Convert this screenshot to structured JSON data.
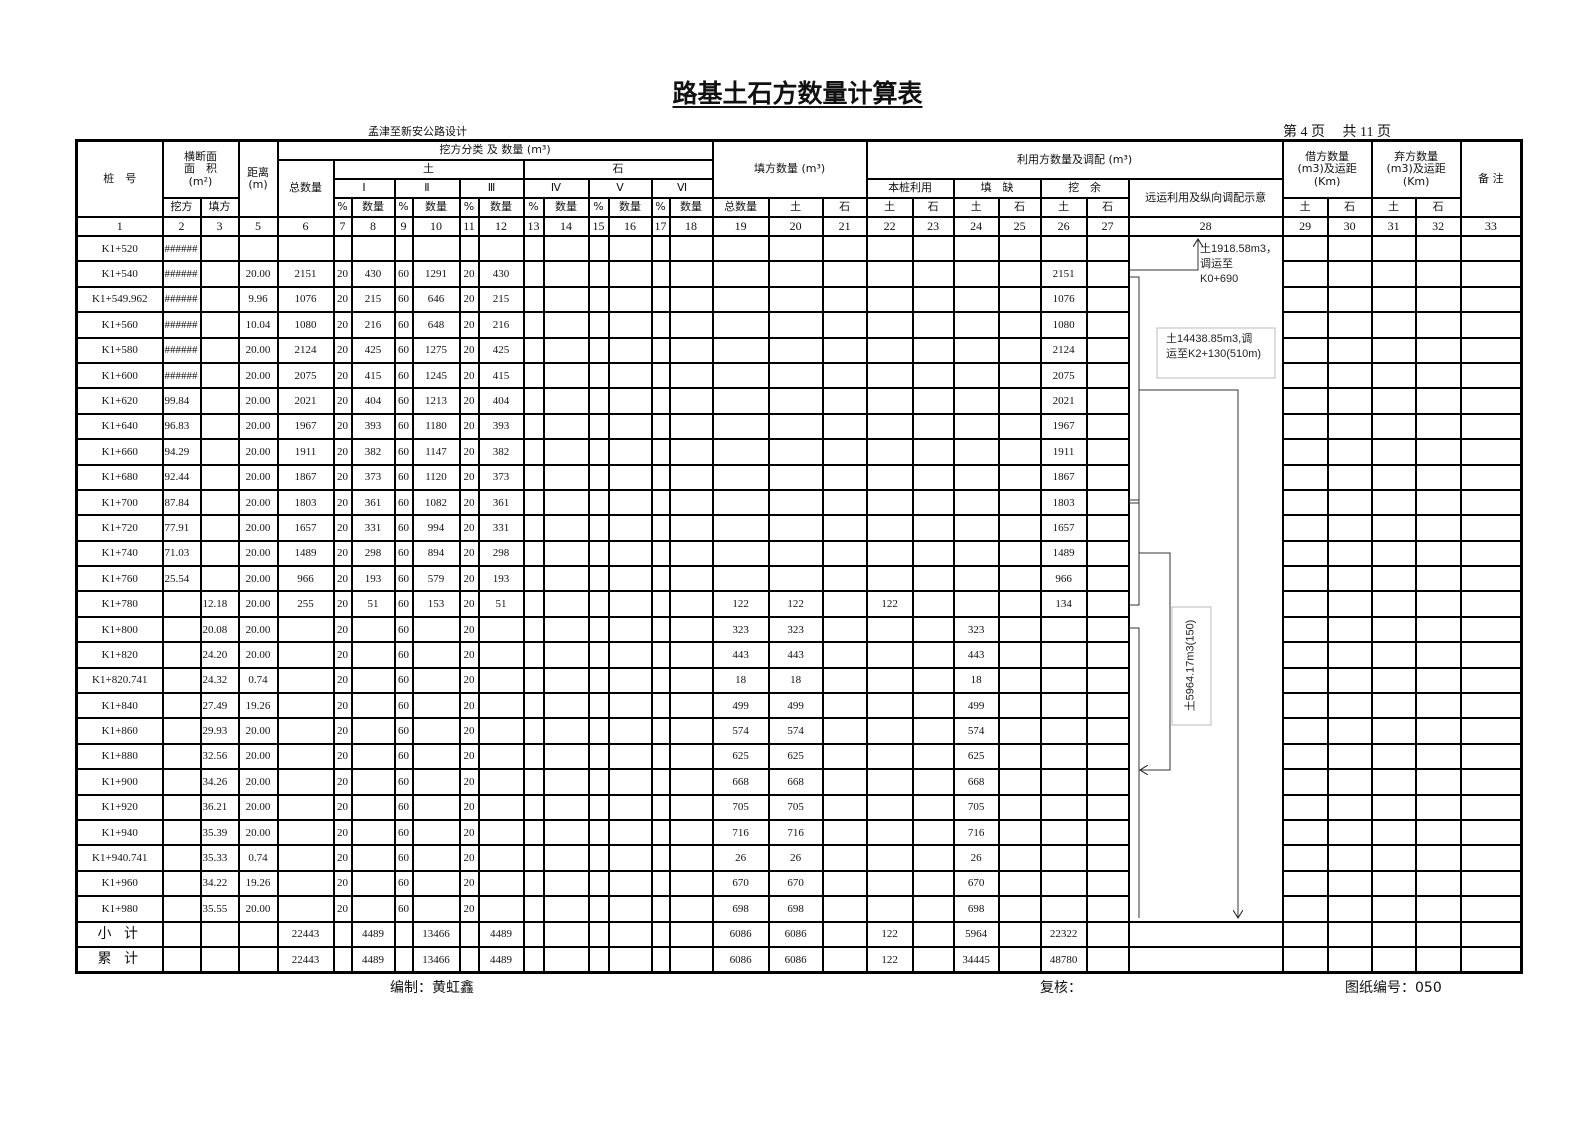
{
  "title": "路基土石方数量计算表",
  "project": "孟津至新安公路设计",
  "page_info": "第 4 页　 共 11 页",
  "header": {
    "station": "桩　号",
    "section_area_l1": "横断面",
    "section_area_l2": "面　积",
    "section_area_l3": "(m²)",
    "cut_area": "挖方",
    "fill_area": "填方",
    "distance_l1": "距离",
    "distance_l2": "(m)",
    "cut_group": "挖方分类 及 数量 (m³)",
    "cut_total": "总数量",
    "soil": "土",
    "rock": "石",
    "classes": [
      "Ⅰ",
      "Ⅱ",
      "Ⅲ",
      "Ⅳ",
      "Ⅴ",
      "Ⅵ"
    ],
    "pct": "%",
    "qty": "数量",
    "fill_group": "填方数量 (m³)",
    "fill_total": "总数量",
    "use_group": "利用方数量及调配 (m³)",
    "self_use": "本桩利用",
    "shortage": "填　缺",
    "surplus": "挖　余",
    "haul_diagram": "远运利用及纵向调配示意",
    "borrow_l1": "借方数量",
    "borrow_l2": "(m3)及运距",
    "borrow_l3": "(Km)",
    "waste_l1": "弃方数量",
    "waste_l2": "(m3)及运距",
    "waste_l3": "(Km)",
    "remark": "备 注",
    "col_numbers": [
      "1",
      "2",
      "3",
      "5",
      "6",
      "7",
      "8",
      "9",
      "10",
      "11",
      "12",
      "13",
      "14",
      "15",
      "16",
      "17",
      "18",
      "19",
      "20",
      "21",
      "22",
      "23",
      "24",
      "25",
      "26",
      "27",
      "28",
      "29",
      "30",
      "31",
      "32",
      "33"
    ]
  },
  "rows": [
    [
      "K1+520",
      "######",
      "",
      "",
      "",
      "",
      "",
      "",
      "",
      "",
      "",
      "",
      "",
      "",
      "",
      "",
      "",
      "",
      "",
      "",
      "",
      "",
      "",
      "",
      "",
      "",
      "",
      "",
      "",
      "",
      ""
    ],
    [
      "K1+540",
      "######",
      "",
      "20.00",
      "2151",
      "20",
      "430",
      "60",
      "1291",
      "20",
      "430",
      "",
      "",
      "",
      "",
      "",
      "",
      "",
      "",
      "",
      "",
      "",
      "",
      "",
      "2151",
      "",
      "",
      "",
      "",
      "",
      ""
    ],
    [
      "K1+549.962",
      "######",
      "",
      "9.96",
      "1076",
      "20",
      "215",
      "60",
      "646",
      "20",
      "215",
      "",
      "",
      "",
      "",
      "",
      "",
      "",
      "",
      "",
      "",
      "",
      "",
      "",
      "1076",
      "",
      "",
      "",
      "",
      "",
      ""
    ],
    [
      "K1+560",
      "######",
      "",
      "10.04",
      "1080",
      "20",
      "216",
      "60",
      "648",
      "20",
      "216",
      "",
      "",
      "",
      "",
      "",
      "",
      "",
      "",
      "",
      "",
      "",
      "",
      "",
      "1080",
      "",
      "",
      "",
      "",
      "",
      ""
    ],
    [
      "K1+580",
      "######",
      "",
      "20.00",
      "2124",
      "20",
      "425",
      "60",
      "1275",
      "20",
      "425",
      "",
      "",
      "",
      "",
      "",
      "",
      "",
      "",
      "",
      "",
      "",
      "",
      "",
      "2124",
      "",
      "",
      "",
      "",
      "",
      ""
    ],
    [
      "K1+600",
      "######",
      "",
      "20.00",
      "2075",
      "20",
      "415",
      "60",
      "1245",
      "20",
      "415",
      "",
      "",
      "",
      "",
      "",
      "",
      "",
      "",
      "",
      "",
      "",
      "",
      "",
      "2075",
      "",
      "",
      "",
      "",
      "",
      ""
    ],
    [
      "K1+620",
      "99.84",
      "",
      "20.00",
      "2021",
      "20",
      "404",
      "60",
      "1213",
      "20",
      "404",
      "",
      "",
      "",
      "",
      "",
      "",
      "",
      "",
      "",
      "",
      "",
      "",
      "",
      "2021",
      "",
      "",
      "",
      "",
      "",
      ""
    ],
    [
      "K1+640",
      "96.83",
      "",
      "20.00",
      "1967",
      "20",
      "393",
      "60",
      "1180",
      "20",
      "393",
      "",
      "",
      "",
      "",
      "",
      "",
      "",
      "",
      "",
      "",
      "",
      "",
      "",
      "1967",
      "",
      "",
      "",
      "",
      "",
      ""
    ],
    [
      "K1+660",
      "94.29",
      "",
      "20.00",
      "1911",
      "20",
      "382",
      "60",
      "1147",
      "20",
      "382",
      "",
      "",
      "",
      "",
      "",
      "",
      "",
      "",
      "",
      "",
      "",
      "",
      "",
      "1911",
      "",
      "",
      "",
      "",
      "",
      ""
    ],
    [
      "K1+680",
      "92.44",
      "",
      "20.00",
      "1867",
      "20",
      "373",
      "60",
      "1120",
      "20",
      "373",
      "",
      "",
      "",
      "",
      "",
      "",
      "",
      "",
      "",
      "",
      "",
      "",
      "",
      "1867",
      "",
      "",
      "",
      "",
      "",
      ""
    ],
    [
      "K1+700",
      "87.84",
      "",
      "20.00",
      "1803",
      "20",
      "361",
      "60",
      "1082",
      "20",
      "361",
      "",
      "",
      "",
      "",
      "",
      "",
      "",
      "",
      "",
      "",
      "",
      "",
      "",
      "1803",
      "",
      "",
      "",
      "",
      "",
      ""
    ],
    [
      "K1+720",
      "77.91",
      "",
      "20.00",
      "1657",
      "20",
      "331",
      "60",
      "994",
      "20",
      "331",
      "",
      "",
      "",
      "",
      "",
      "",
      "",
      "",
      "",
      "",
      "",
      "",
      "",
      "1657",
      "",
      "",
      "",
      "",
      "",
      ""
    ],
    [
      "K1+740",
      "71.03",
      "",
      "20.00",
      "1489",
      "20",
      "298",
      "60",
      "894",
      "20",
      "298",
      "",
      "",
      "",
      "",
      "",
      "",
      "",
      "",
      "",
      "",
      "",
      "",
      "",
      "1489",
      "",
      "",
      "",
      "",
      "",
      ""
    ],
    [
      "K1+760",
      "25.54",
      "",
      "20.00",
      "966",
      "20",
      "193",
      "60",
      "579",
      "20",
      "193",
      "",
      "",
      "",
      "",
      "",
      "",
      "",
      "",
      "",
      "",
      "",
      "",
      "",
      "966",
      "",
      "",
      "",
      "",
      "",
      ""
    ],
    [
      "K1+780",
      "",
      "12.18",
      "20.00",
      "255",
      "20",
      "51",
      "60",
      "153",
      "20",
      "51",
      "",
      "",
      "",
      "",
      "",
      "",
      "122",
      "122",
      "",
      "122",
      "",
      "",
      "",
      "134",
      "",
      "",
      "",
      "",
      "",
      ""
    ],
    [
      "K1+800",
      "",
      "20.08",
      "20.00",
      "",
      "20",
      "",
      "60",
      "",
      "20",
      "",
      "",
      "",
      "",
      "",
      "",
      "",
      "323",
      "323",
      "",
      "",
      "",
      "323",
      "",
      "",
      "",
      "",
      "",
      "",
      "",
      ""
    ],
    [
      "K1+820",
      "",
      "24.20",
      "20.00",
      "",
      "20",
      "",
      "60",
      "",
      "20",
      "",
      "",
      "",
      "",
      "",
      "",
      "",
      "443",
      "443",
      "",
      "",
      "",
      "443",
      "",
      "",
      "",
      "",
      "",
      "",
      "",
      ""
    ],
    [
      "K1+820.741",
      "",
      "24.32",
      "0.74",
      "",
      "20",
      "",
      "60",
      "",
      "20",
      "",
      "",
      "",
      "",
      "",
      "",
      "",
      "18",
      "18",
      "",
      "",
      "",
      "18",
      "",
      "",
      "",
      "",
      "",
      "",
      "",
      ""
    ],
    [
      "K1+840",
      "",
      "27.49",
      "19.26",
      "",
      "20",
      "",
      "60",
      "",
      "20",
      "",
      "",
      "",
      "",
      "",
      "",
      "",
      "499",
      "499",
      "",
      "",
      "",
      "499",
      "",
      "",
      "",
      "",
      "",
      "",
      "",
      ""
    ],
    [
      "K1+860",
      "",
      "29.93",
      "20.00",
      "",
      "20",
      "",
      "60",
      "",
      "20",
      "",
      "",
      "",
      "",
      "",
      "",
      "",
      "574",
      "574",
      "",
      "",
      "",
      "574",
      "",
      "",
      "",
      "",
      "",
      "",
      "",
      ""
    ],
    [
      "K1+880",
      "",
      "32.56",
      "20.00",
      "",
      "20",
      "",
      "60",
      "",
      "20",
      "",
      "",
      "",
      "",
      "",
      "",
      "",
      "625",
      "625",
      "",
      "",
      "",
      "625",
      "",
      "",
      "",
      "",
      "",
      "",
      "",
      ""
    ],
    [
      "K1+900",
      "",
      "34.26",
      "20.00",
      "",
      "20",
      "",
      "60",
      "",
      "20",
      "",
      "",
      "",
      "",
      "",
      "",
      "",
      "668",
      "668",
      "",
      "",
      "",
      "668",
      "",
      "",
      "",
      "",
      "",
      "",
      "",
      ""
    ],
    [
      "K1+920",
      "",
      "36.21",
      "20.00",
      "",
      "20",
      "",
      "60",
      "",
      "20",
      "",
      "",
      "",
      "",
      "",
      "",
      "",
      "705",
      "705",
      "",
      "",
      "",
      "705",
      "",
      "",
      "",
      "",
      "",
      "",
      "",
      ""
    ],
    [
      "K1+940",
      "",
      "35.39",
      "20.00",
      "",
      "20",
      "",
      "60",
      "",
      "20",
      "",
      "",
      "",
      "",
      "",
      "",
      "",
      "716",
      "716",
      "",
      "",
      "",
      "716",
      "",
      "",
      "",
      "",
      "",
      "",
      "",
      ""
    ],
    [
      "K1+940.741",
      "",
      "35.33",
      "0.74",
      "",
      "20",
      "",
      "60",
      "",
      "20",
      "",
      "",
      "",
      "",
      "",
      "",
      "",
      "26",
      "26",
      "",
      "",
      "",
      "26",
      "",
      "",
      "",
      "",
      "",
      "",
      "",
      ""
    ],
    [
      "K1+960",
      "",
      "34.22",
      "19.26",
      "",
      "20",
      "",
      "60",
      "",
      "20",
      "",
      "",
      "",
      "",
      "",
      "",
      "",
      "670",
      "670",
      "",
      "",
      "",
      "670",
      "",
      "",
      "",
      "",
      "",
      "",
      "",
      ""
    ],
    [
      "K1+980",
      "",
      "35.55",
      "20.00",
      "",
      "20",
      "",
      "60",
      "",
      "20",
      "",
      "",
      "",
      "",
      "",
      "",
      "",
      "698",
      "698",
      "",
      "",
      "",
      "698",
      "",
      "",
      "",
      "",
      "",
      "",
      "",
      ""
    ]
  ],
  "totals": [
    [
      "小 计",
      "",
      "",
      "",
      "22443",
      "",
      "4489",
      "",
      "13466",
      "",
      "4489",
      "",
      "",
      "",
      "",
      "",
      "",
      "6086",
      "6086",
      "",
      "122",
      "",
      "5964",
      "",
      "22322",
      "",
      "",
      "",
      "",
      "",
      ""
    ],
    [
      "累 计",
      "",
      "",
      "",
      "22443",
      "",
      "4489",
      "",
      "13466",
      "",
      "4489",
      "",
      "",
      "",
      "",
      "",
      "",
      "6086",
      "6086",
      "",
      "122",
      "",
      "34445",
      "",
      "48780",
      "",
      "",
      "",
      "",
      "",
      ""
    ]
  ],
  "haul_notes": {
    "note1_l1": "土1918.58m3，",
    "note1_l2": "调运至",
    "note1_l3": "K0+690",
    "note2_l1": "土14438.85m3,调",
    "note2_l2": "运至K2+130(510m)",
    "note3": "土5964.17m3(150)"
  },
  "footer": {
    "compiler": "编制：黄虹鑫",
    "reviewer": "复核：",
    "drawing_no": "图纸编号：050"
  }
}
